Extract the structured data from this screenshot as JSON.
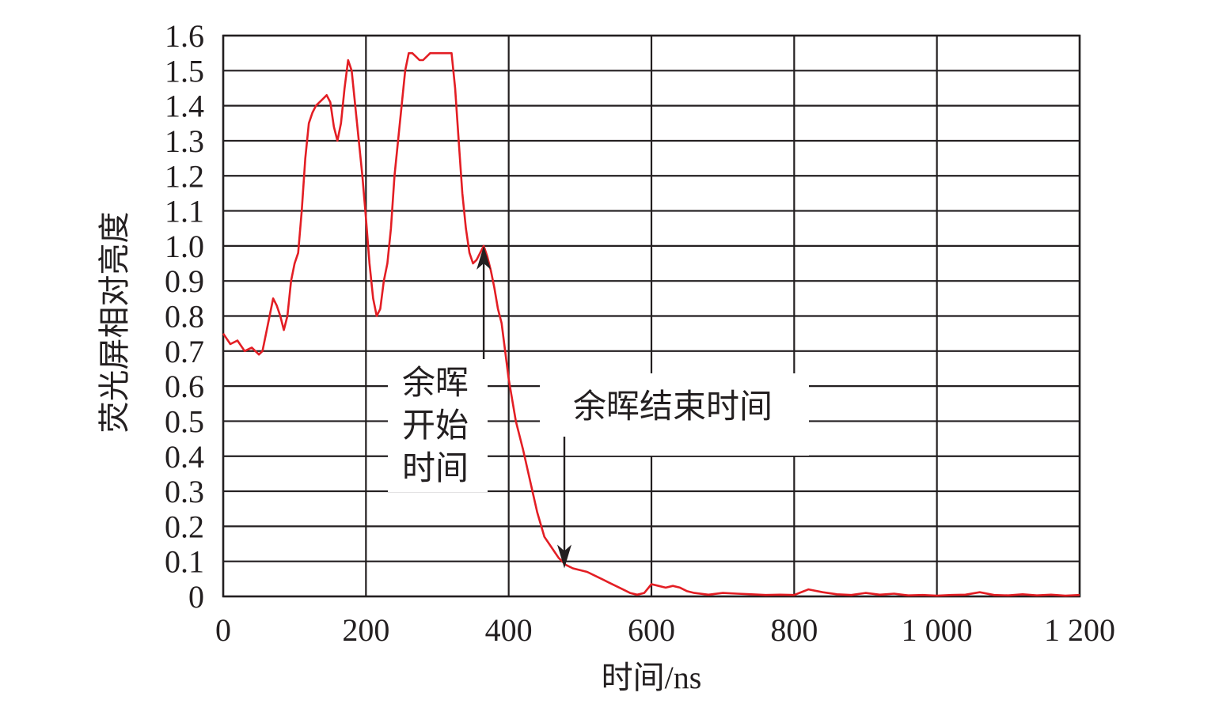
{
  "chart_data": {
    "type": "line",
    "title": "",
    "xlabel": "时间/ns",
    "ylabel": "荧光屏相对亮度",
    "xlim": [
      0,
      1200
    ],
    "ylim": [
      0,
      1.6
    ],
    "grid": true,
    "legend": "none",
    "x_ticks": [
      0,
      200,
      400,
      600,
      800,
      1000,
      1200
    ],
    "x_tick_labels": [
      "0",
      "200",
      "400",
      "600",
      "800",
      "1 000",
      "1 200"
    ],
    "y_ticks": [
      0,
      0.1,
      0.2,
      0.3,
      0.4,
      0.5,
      0.6,
      0.7,
      0.8,
      0.9,
      1.0,
      1.1,
      1.2,
      1.3,
      1.4,
      1.5,
      1.6
    ],
    "y_tick_labels": [
      "0",
      "0.1",
      "0.2",
      "0.3",
      "0.4",
      "0.5",
      "0.6",
      "0.7",
      "0.8",
      "0.9",
      "1.0",
      "1.1",
      "1.2",
      "1.3",
      "1.4",
      "1.5",
      "1.6"
    ],
    "series": [
      {
        "color": "#e31e24",
        "x": [
          0,
          10,
          20,
          30,
          40,
          50,
          55,
          60,
          65,
          70,
          75,
          80,
          85,
          90,
          95,
          100,
          105,
          110,
          115,
          120,
          125,
          130,
          135,
          140,
          145,
          150,
          155,
          160,
          165,
          170,
          175,
          180,
          185,
          190,
          195,
          200,
          205,
          210,
          215,
          220,
          225,
          230,
          235,
          240,
          245,
          250,
          255,
          260,
          265,
          270,
          275,
          280,
          290,
          300,
          310,
          320,
          325,
          330,
          335,
          340,
          345,
          350,
          355,
          360,
          365,
          370,
          375,
          380,
          385,
          390,
          400,
          410,
          420,
          430,
          440,
          450,
          460,
          470,
          480,
          490,
          500,
          510,
          520,
          530,
          540,
          550,
          560,
          570,
          580,
          590,
          600,
          610,
          620,
          630,
          640,
          650,
          660,
          680,
          700,
          720,
          740,
          760,
          780,
          800,
          820,
          840,
          860,
          880,
          900,
          920,
          940,
          960,
          980,
          1000,
          1020,
          1040,
          1060,
          1080,
          1100,
          1120,
          1140,
          1160,
          1180,
          1200
        ],
        "y": [
          0.75,
          0.72,
          0.73,
          0.7,
          0.71,
          0.69,
          0.7,
          0.75,
          0.8,
          0.85,
          0.83,
          0.8,
          0.76,
          0.8,
          0.9,
          0.95,
          0.98,
          1.1,
          1.25,
          1.35,
          1.38,
          1.4,
          1.41,
          1.42,
          1.43,
          1.41,
          1.34,
          1.3,
          1.35,
          1.45,
          1.53,
          1.5,
          1.4,
          1.3,
          1.2,
          1.08,
          0.95,
          0.85,
          0.8,
          0.82,
          0.9,
          0.95,
          1.05,
          1.2,
          1.3,
          1.4,
          1.5,
          1.55,
          1.55,
          1.54,
          1.53,
          1.53,
          1.55,
          1.55,
          1.55,
          1.55,
          1.45,
          1.3,
          1.15,
          1.05,
          0.98,
          0.95,
          0.96,
          0.98,
          1.0,
          0.97,
          0.93,
          0.88,
          0.82,
          0.78,
          0.62,
          0.5,
          0.42,
          0.33,
          0.24,
          0.17,
          0.14,
          0.11,
          0.09,
          0.08,
          0.075,
          0.07,
          0.06,
          0.05,
          0.04,
          0.03,
          0.02,
          0.01,
          0.005,
          0.01,
          0.035,
          0.03,
          0.025,
          0.03,
          0.025,
          0.015,
          0.01,
          0.005,
          0.01,
          0.008,
          0.006,
          0.004,
          0.005,
          0.004,
          0.02,
          0.012,
          0.006,
          0.004,
          0.01,
          0.005,
          0.008,
          0.003,
          0.004,
          0.002,
          0.004,
          0.005,
          0.012,
          0.004,
          0.003,
          0.006,
          0.003,
          0.005,
          0.002,
          0.004
        ]
      }
    ],
    "annotations": [
      {
        "lines": [
          "余晖",
          "开始",
          "时间"
        ],
        "x": 365,
        "y": 1.0
      },
      {
        "lines": [
          "余晖结束时间"
        ],
        "x": 478,
        "y": 0.08
      }
    ]
  }
}
